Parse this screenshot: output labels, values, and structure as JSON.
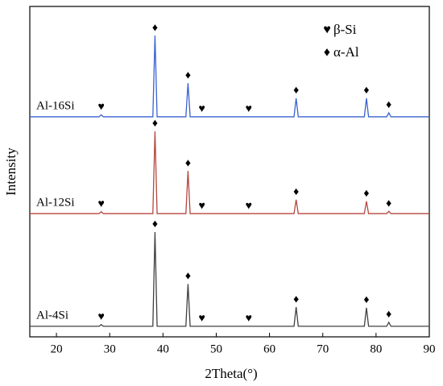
{
  "chart_data": {
    "type": "line",
    "xlabel": "2Theta(°)",
    "ylabel": "Intensity",
    "xlim": [
      15,
      90
    ],
    "xticks": [
      20,
      30,
      40,
      50,
      60,
      70,
      80,
      90
    ],
    "ylim": [
      0,
      100
    ],
    "x": [
      15,
      28,
      28.4,
      28.8,
      38.1,
      38.5,
      38.9,
      44.3,
      44.7,
      45.1,
      64.6,
      65,
      65.4,
      77.8,
      78.2,
      78.6,
      82,
      82.4,
      82.8,
      90
    ],
    "series": [
      {
        "name": "Al-16Si",
        "color": "#3a62d0",
        "values": [
          66.6,
          66.6,
          67.2,
          66.6,
          66.6,
          91.2,
          66.6,
          66.6,
          76.8,
          66.6,
          66.6,
          72.2,
          66.6,
          66.6,
          72.2,
          66.6,
          66.6,
          67.8,
          66.6,
          66.6
        ]
      },
      {
        "name": "Al-12Si",
        "color": "#b5473f",
        "values": [
          37.3,
          37.3,
          37.9,
          37.3,
          37.3,
          62.2,
          37.3,
          37.3,
          50.2,
          37.3,
          37.3,
          41.5,
          37.3,
          37.3,
          41,
          37.3,
          37.3,
          38,
          37.3,
          37.3
        ]
      },
      {
        "name": "Al-4Si",
        "color": "#404040",
        "values": [
          3.2,
          3.2,
          3.7,
          3.2,
          3.2,
          31.7,
          3.2,
          3.2,
          16,
          3.2,
          3.2,
          9,
          3.2,
          3.2,
          8.8,
          3.2,
          3.2,
          4.4,
          3.2,
          3.2
        ]
      }
    ],
    "phases": [
      {
        "symbol": "♥",
        "name": "β-Si",
        "x": [
          28.4,
          47.3,
          56.1
        ]
      },
      {
        "symbol": "♦",
        "name": "α-Al",
        "x": [
          38.5,
          44.7,
          65,
          78.2,
          82.4
        ]
      }
    ]
  }
}
